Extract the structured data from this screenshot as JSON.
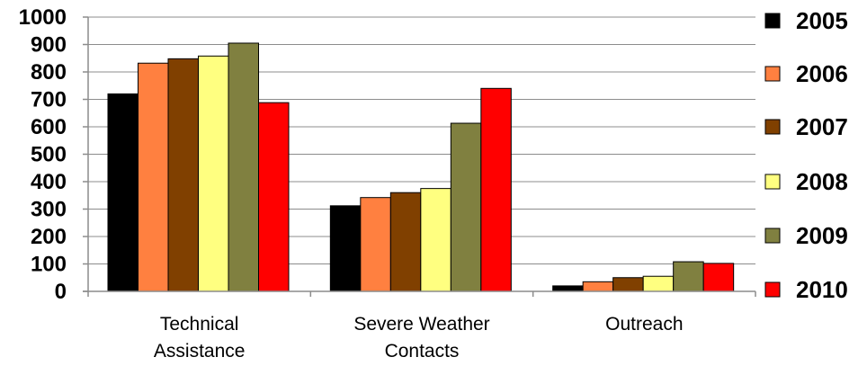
{
  "chart_data": {
    "type": "bar",
    "title": "",
    "xlabel": "",
    "ylabel": "",
    "ylim": [
      0,
      1000
    ],
    "yticks": [
      0,
      100,
      200,
      300,
      400,
      500,
      600,
      700,
      800,
      900,
      1000
    ],
    "grid": true,
    "legend_position": "right",
    "categories": [
      [
        "Technical",
        "Assistance"
      ],
      [
        "Severe Weather",
        "Contacts"
      ],
      [
        "Outreach"
      ]
    ],
    "series": [
      {
        "name": "2005",
        "color": "#000000",
        "values": [
          720,
          312,
          20
        ]
      },
      {
        "name": "2006",
        "color": "#FF8040",
        "values": [
          832,
          342,
          35
        ]
      },
      {
        "name": "2007",
        "color": "#804000",
        "values": [
          848,
          360,
          50
        ]
      },
      {
        "name": "2008",
        "color": "#FFFF80",
        "values": [
          858,
          375,
          55
        ]
      },
      {
        "name": "2009",
        "color": "#808040",
        "values": [
          905,
          613,
          108
        ]
      },
      {
        "name": "2010",
        "color": "#FF0000",
        "values": [
          688,
          740,
          102
        ]
      }
    ]
  }
}
